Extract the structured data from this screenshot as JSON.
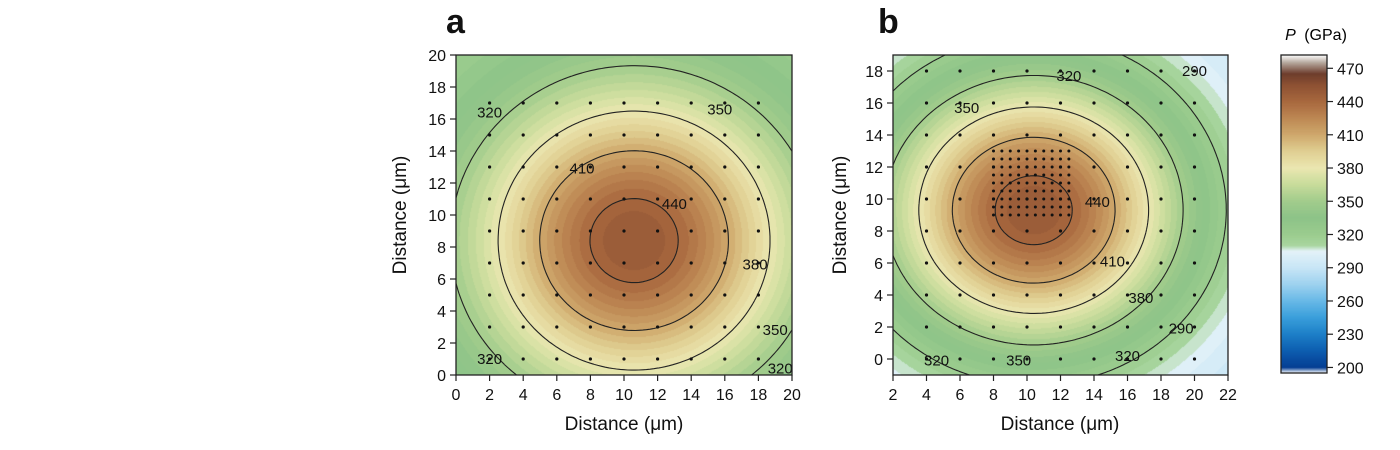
{
  "chart_data": [
    {
      "type": "heatmap",
      "panel_label": "a",
      "xlabel": "Distance (μm)",
      "ylabel": "Distance (μm)",
      "xlim": [
        0,
        20
      ],
      "ylim": [
        0,
        20
      ],
      "x_ticks": [
        0,
        2,
        4,
        6,
        8,
        10,
        12,
        14,
        16,
        18,
        20
      ],
      "y_ticks": [
        0,
        2,
        4,
        6,
        8,
        10,
        12,
        14,
        16,
        18,
        20
      ],
      "field": {
        "peak": [
          10.6,
          8.4
        ],
        "sigma": [
          6.3,
          6.3
        ],
        "peak_value": 450,
        "base_value": 305,
        "tail_value": 50,
        "tail_sigma": 9.0
      },
      "grid_points": {
        "x": [
          2,
          4,
          6,
          8,
          10,
          12,
          14,
          16,
          18
        ],
        "y": [
          1,
          3,
          5,
          7,
          9,
          11,
          13,
          15,
          17
        ]
      },
      "contour_levels": [
        320,
        350,
        380,
        410,
        440
      ],
      "contour_labels": [
        {
          "text": "320",
          "x": 2.0,
          "y": 16.4
        },
        {
          "text": "350",
          "x": 15.7,
          "y": 16.6
        },
        {
          "text": "410",
          "x": 7.5,
          "y": 12.9
        },
        {
          "text": "440",
          "x": 13.0,
          "y": 10.7
        },
        {
          "text": "380",
          "x": 17.8,
          "y": 6.9
        },
        {
          "text": "350",
          "x": 19.0,
          "y": 2.8
        },
        {
          "text": "320",
          "x": 2.0,
          "y": 1.0
        },
        {
          "text": "320",
          "x": 19.3,
          "y": 0.4
        }
      ]
    },
    {
      "type": "heatmap",
      "panel_label": "b",
      "xlabel": "Distance (μm)",
      "ylabel": "Distance (μm)",
      "xlim": [
        2,
        22
      ],
      "ylim": [
        -1,
        19
      ],
      "x_ticks": [
        2,
        4,
        6,
        8,
        10,
        12,
        14,
        16,
        18,
        20,
        22
      ],
      "y_ticks": [
        0,
        2,
        4,
        6,
        8,
        10,
        12,
        14,
        16,
        18
      ],
      "field": {
        "peak": [
          10.4,
          9.3
        ],
        "sigma": [
          6.1,
          5.6
        ],
        "peak_value": 450,
        "base_value": 280,
        "tail_value": 60,
        "tail_sigma": 8.0
      },
      "grid_points": {
        "x": [
          4,
          6,
          8,
          10,
          12,
          14,
          16,
          18,
          20
        ],
        "y": [
          0,
          2,
          4,
          6,
          8,
          10,
          12,
          14,
          16,
          18
        ]
      },
      "dense_grid": {
        "x": [
          8,
          12.5
        ],
        "y": [
          9,
          13
        ],
        "step": 0.5
      },
      "contour_levels": [
        290,
        320,
        350,
        380,
        410,
        440
      ],
      "contour_labels": [
        {
          "text": "320",
          "x": 12.5,
          "y": 17.7
        },
        {
          "text": "290",
          "x": 20.0,
          "y": 18.0
        },
        {
          "text": "350",
          "x": 6.4,
          "y": 15.7
        },
        {
          "text": "440",
          "x": 14.2,
          "y": 9.8
        },
        {
          "text": "410",
          "x": 15.1,
          "y": 6.1
        },
        {
          "text": "380",
          "x": 16.8,
          "y": 3.8
        },
        {
          "text": "290",
          "x": 19.2,
          "y": 1.9
        },
        {
          "text": "320",
          "x": 4.6,
          "y": -0.1
        },
        {
          "text": "350",
          "x": 9.5,
          "y": -0.1
        },
        {
          "text": "320",
          "x": 16.0,
          "y": 0.2
        }
      ]
    }
  ],
  "colorbar": {
    "title_var": "P",
    "title_unit": "(GPa)",
    "min": 200,
    "max": 480,
    "tick_values": [
      200,
      230,
      260,
      290,
      320,
      350,
      380,
      410,
      440,
      470
    ],
    "tick_labels": [
      "200",
      "230",
      "260",
      "290",
      "320",
      "350",
      "380",
      "410",
      "440",
      "470"
    ],
    "color_stops": [
      {
        "v": 195,
        "c": "#ffffff"
      },
      {
        "v": 200,
        "c": "#053e93"
      },
      {
        "v": 215,
        "c": "#0d5eb0"
      },
      {
        "v": 230,
        "c": "#1d7fc8"
      },
      {
        "v": 245,
        "c": "#3a9fdb"
      },
      {
        "v": 260,
        "c": "#68b9e7"
      },
      {
        "v": 275,
        "c": "#9ed2ef"
      },
      {
        "v": 290,
        "c": "#c8e6f6"
      },
      {
        "v": 305,
        "c": "#e4f2f8"
      },
      {
        "v": 310,
        "c": "#a9d6a0"
      },
      {
        "v": 320,
        "c": "#9bcc8e"
      },
      {
        "v": 335,
        "c": "#8dc388"
      },
      {
        "v": 350,
        "c": "#a2cc8c"
      },
      {
        "v": 365,
        "c": "#c8dc9b"
      },
      {
        "v": 380,
        "c": "#ebe7b1"
      },
      {
        "v": 395,
        "c": "#e0cf92"
      },
      {
        "v": 410,
        "c": "#cfa86c"
      },
      {
        "v": 425,
        "c": "#bd8753"
      },
      {
        "v": 440,
        "c": "#a8683e"
      },
      {
        "v": 455,
        "c": "#8d5133"
      },
      {
        "v": 465,
        "c": "#6d3d2c"
      },
      {
        "v": 475,
        "c": "#b5a79c"
      },
      {
        "v": 482,
        "c": "#ffffff"
      }
    ]
  }
}
